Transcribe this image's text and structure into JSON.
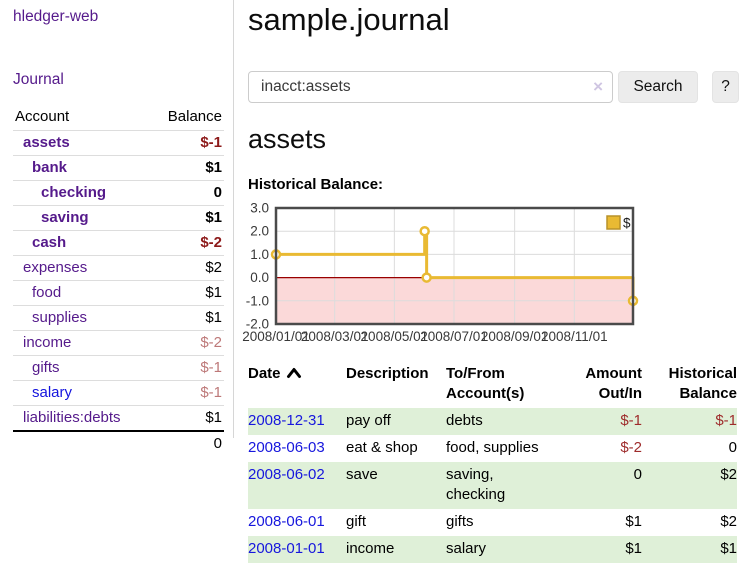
{
  "sidebar": {
    "brand": "hledger-web",
    "journal_label": "Journal",
    "accounts_table": {
      "headers": [
        "Account",
        "Balance"
      ],
      "rows": [
        {
          "name": "assets",
          "depth": 1,
          "balance": "$-1",
          "in_account": true,
          "negative": true,
          "link_style": "visited"
        },
        {
          "name": "bank",
          "depth": 2,
          "balance": "$1",
          "in_account": true,
          "negative": false,
          "link_style": "visited"
        },
        {
          "name": "checking",
          "depth": 3,
          "balance": "0",
          "in_account": true,
          "negative": false,
          "link_style": "visited"
        },
        {
          "name": "saving",
          "depth": 3,
          "balance": "$1",
          "in_account": true,
          "negative": false,
          "link_style": "visited"
        },
        {
          "name": "cash",
          "depth": 2,
          "balance": "$-2",
          "in_account": true,
          "negative": true,
          "link_style": "visited"
        },
        {
          "name": "expenses",
          "depth": 1,
          "balance": "$2",
          "in_account": false,
          "negative": false,
          "link_style": "visited"
        },
        {
          "name": "food",
          "depth": 2,
          "balance": "$1",
          "in_account": false,
          "negative": false,
          "link_style": "visited"
        },
        {
          "name": "supplies",
          "depth": 2,
          "balance": "$1",
          "in_account": false,
          "negative": false,
          "link_style": "visited"
        },
        {
          "name": "income",
          "depth": 1,
          "balance": "$-2",
          "in_account": false,
          "negative": true,
          "link_style": "visited"
        },
        {
          "name": "gifts",
          "depth": 2,
          "balance": "$-1",
          "in_account": false,
          "negative": true,
          "link_style": "visited"
        },
        {
          "name": "salary",
          "depth": 2,
          "balance": "$-1",
          "in_account": false,
          "negative": true,
          "link_style": "unvisited"
        },
        {
          "name": "liabilities:debts",
          "depth": 1,
          "balance": "$1",
          "in_account": false,
          "negative": false,
          "link_style": "visited"
        }
      ],
      "total": "0"
    }
  },
  "header": {
    "title": "sample.journal"
  },
  "search": {
    "value": "inacct:assets",
    "clear_icon": "×",
    "button_label": "Search",
    "help_label": "?"
  },
  "account_page": {
    "heading": "assets",
    "chart_title": "Historical Balance:"
  },
  "chart_data": {
    "type": "line",
    "step": true,
    "title": "Historical Balance",
    "series": [
      {
        "name": "$",
        "points": [
          {
            "date": "2008/01/01",
            "day": 0,
            "value": 1.0
          },
          {
            "date": "2008/06/01",
            "day": 152,
            "value": 2.0
          },
          {
            "date": "2008/06/03",
            "day": 154,
            "value": 0.0
          },
          {
            "date": "2008/12/31",
            "day": 365,
            "value": -1.0
          }
        ]
      }
    ],
    "x_ticks": [
      {
        "label": "2008/01/01",
        "day": 0
      },
      {
        "label": "2008/03/01",
        "day": 60
      },
      {
        "label": "2008/05/01",
        "day": 121
      },
      {
        "label": "2008/07/01",
        "day": 182
      },
      {
        "label": "2008/09/01",
        "day": 244
      },
      {
        "label": "2008/11/01",
        "day": 305
      }
    ],
    "y_ticks": [
      "3.0",
      "2.0",
      "1.0",
      "0.0",
      "-1.0",
      "-2.0"
    ],
    "y_range": [
      -2,
      3
    ],
    "x_range_days": [
      0,
      365
    ],
    "legend": {
      "label": "$",
      "position": "top-right"
    },
    "grid": true,
    "colors": {
      "series": "#e9ba33",
      "negative_fill": "#fbd9d9",
      "zero_line": "#990000",
      "grid": "#dcdcdc",
      "border": "#4a4a4a"
    }
  },
  "register": {
    "headers": [
      {
        "label": "Date",
        "sort": "ascending"
      },
      {
        "label": "Description"
      },
      {
        "label": "To/From Account(s)"
      },
      {
        "label": "Amount Out/In",
        "align": "right"
      },
      {
        "label": "Historical Balance",
        "align": "right"
      }
    ],
    "rows": [
      {
        "date": "2008-12-31",
        "description": "pay off",
        "accounts": "debts",
        "amount": "$-1",
        "amount_negative": true,
        "balance": "$-1",
        "balance_negative": true,
        "shaded": true
      },
      {
        "date": "2008-06-03",
        "description": "eat & shop",
        "accounts": "food, supplies",
        "amount": "$-2",
        "amount_negative": true,
        "balance": "0",
        "balance_negative": false,
        "shaded": false
      },
      {
        "date": "2008-06-02",
        "description": "save",
        "accounts": "saving, checking",
        "amount": "0",
        "amount_negative": false,
        "balance": "$2",
        "balance_negative": false,
        "shaded": true
      },
      {
        "date": "2008-06-01",
        "description": "gift",
        "accounts": "gifts",
        "amount": "$1",
        "amount_negative": false,
        "balance": "$2",
        "balance_negative": false,
        "shaded": false
      },
      {
        "date": "2008-01-01",
        "description": "income",
        "accounts": "salary",
        "amount": "$1",
        "amount_negative": false,
        "balance": "$1",
        "balance_negative": false,
        "shaded": true
      }
    ]
  }
}
